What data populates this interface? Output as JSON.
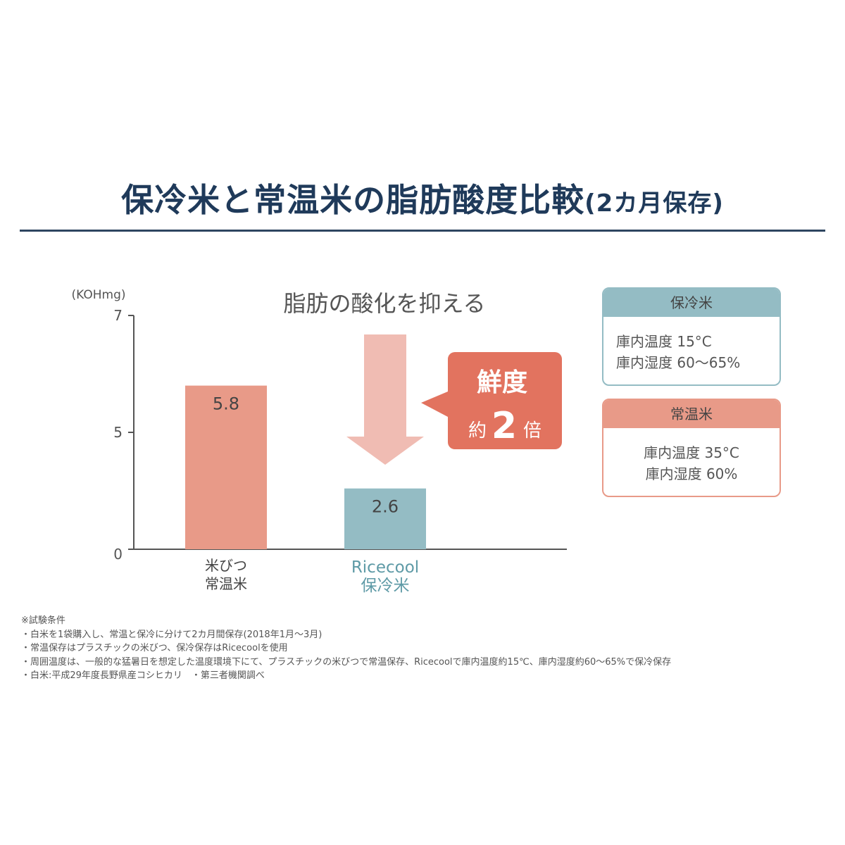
{
  "title": {
    "main": "保冷米と常温米の脂肪酸度比較",
    "sub": "(2カ月保存)"
  },
  "chart_data": {
    "type": "bar",
    "categories": [
      [
        "米びつ",
        "常温米"
      ],
      [
        "Ricecool",
        "保冷米"
      ]
    ],
    "values": [
      5.8,
      2.6
    ],
    "value_labels": [
      "5.8",
      "2.6"
    ],
    "ylabel": "(KOHmg)",
    "yticks": [
      "0",
      "5",
      "7"
    ],
    "ylim": [
      0,
      7
    ],
    "grid": false,
    "bar_colors": [
      "#e89a88",
      "#94bcc4"
    ],
    "category_colors": [
      "#444444",
      "#5e9aa6"
    ],
    "annotation": "脂肪の酸化を抑える",
    "callout": {
      "line1": "鮮度",
      "prefix": "約",
      "number": "2",
      "suffix": "倍",
      "color": "#e2735f"
    },
    "arrow_color": "#f0bcb3"
  },
  "legend": [
    {
      "title": "保冷米",
      "lines": [
        "庫内温度 15°C",
        "庫内湿度 60〜65%"
      ],
      "color": "#94bcc4"
    },
    {
      "title": "常温米",
      "lines": [
        "庫内温度 35°C",
        "庫内湿度 60%"
      ],
      "color": "#e89a88"
    }
  ],
  "footnotes": [
    "※試験条件",
    "・白米を1袋購入し、常温と保冷に分けて2カ月間保存(2018年1月〜3月)",
    "・常温保存はプラスチックの米びつ、保冷保存はRicecoolを使用",
    "・周囲温度は、一般的な猛暑日を想定した温度環境下にて、プラスチックの米びつで常温保存、Ricecoolで庫内温度約15℃、庫内湿度約60〜65%で保冷保存",
    "・白米:平成29年度長野県産コシヒカリ　・第三者機関調べ"
  ]
}
